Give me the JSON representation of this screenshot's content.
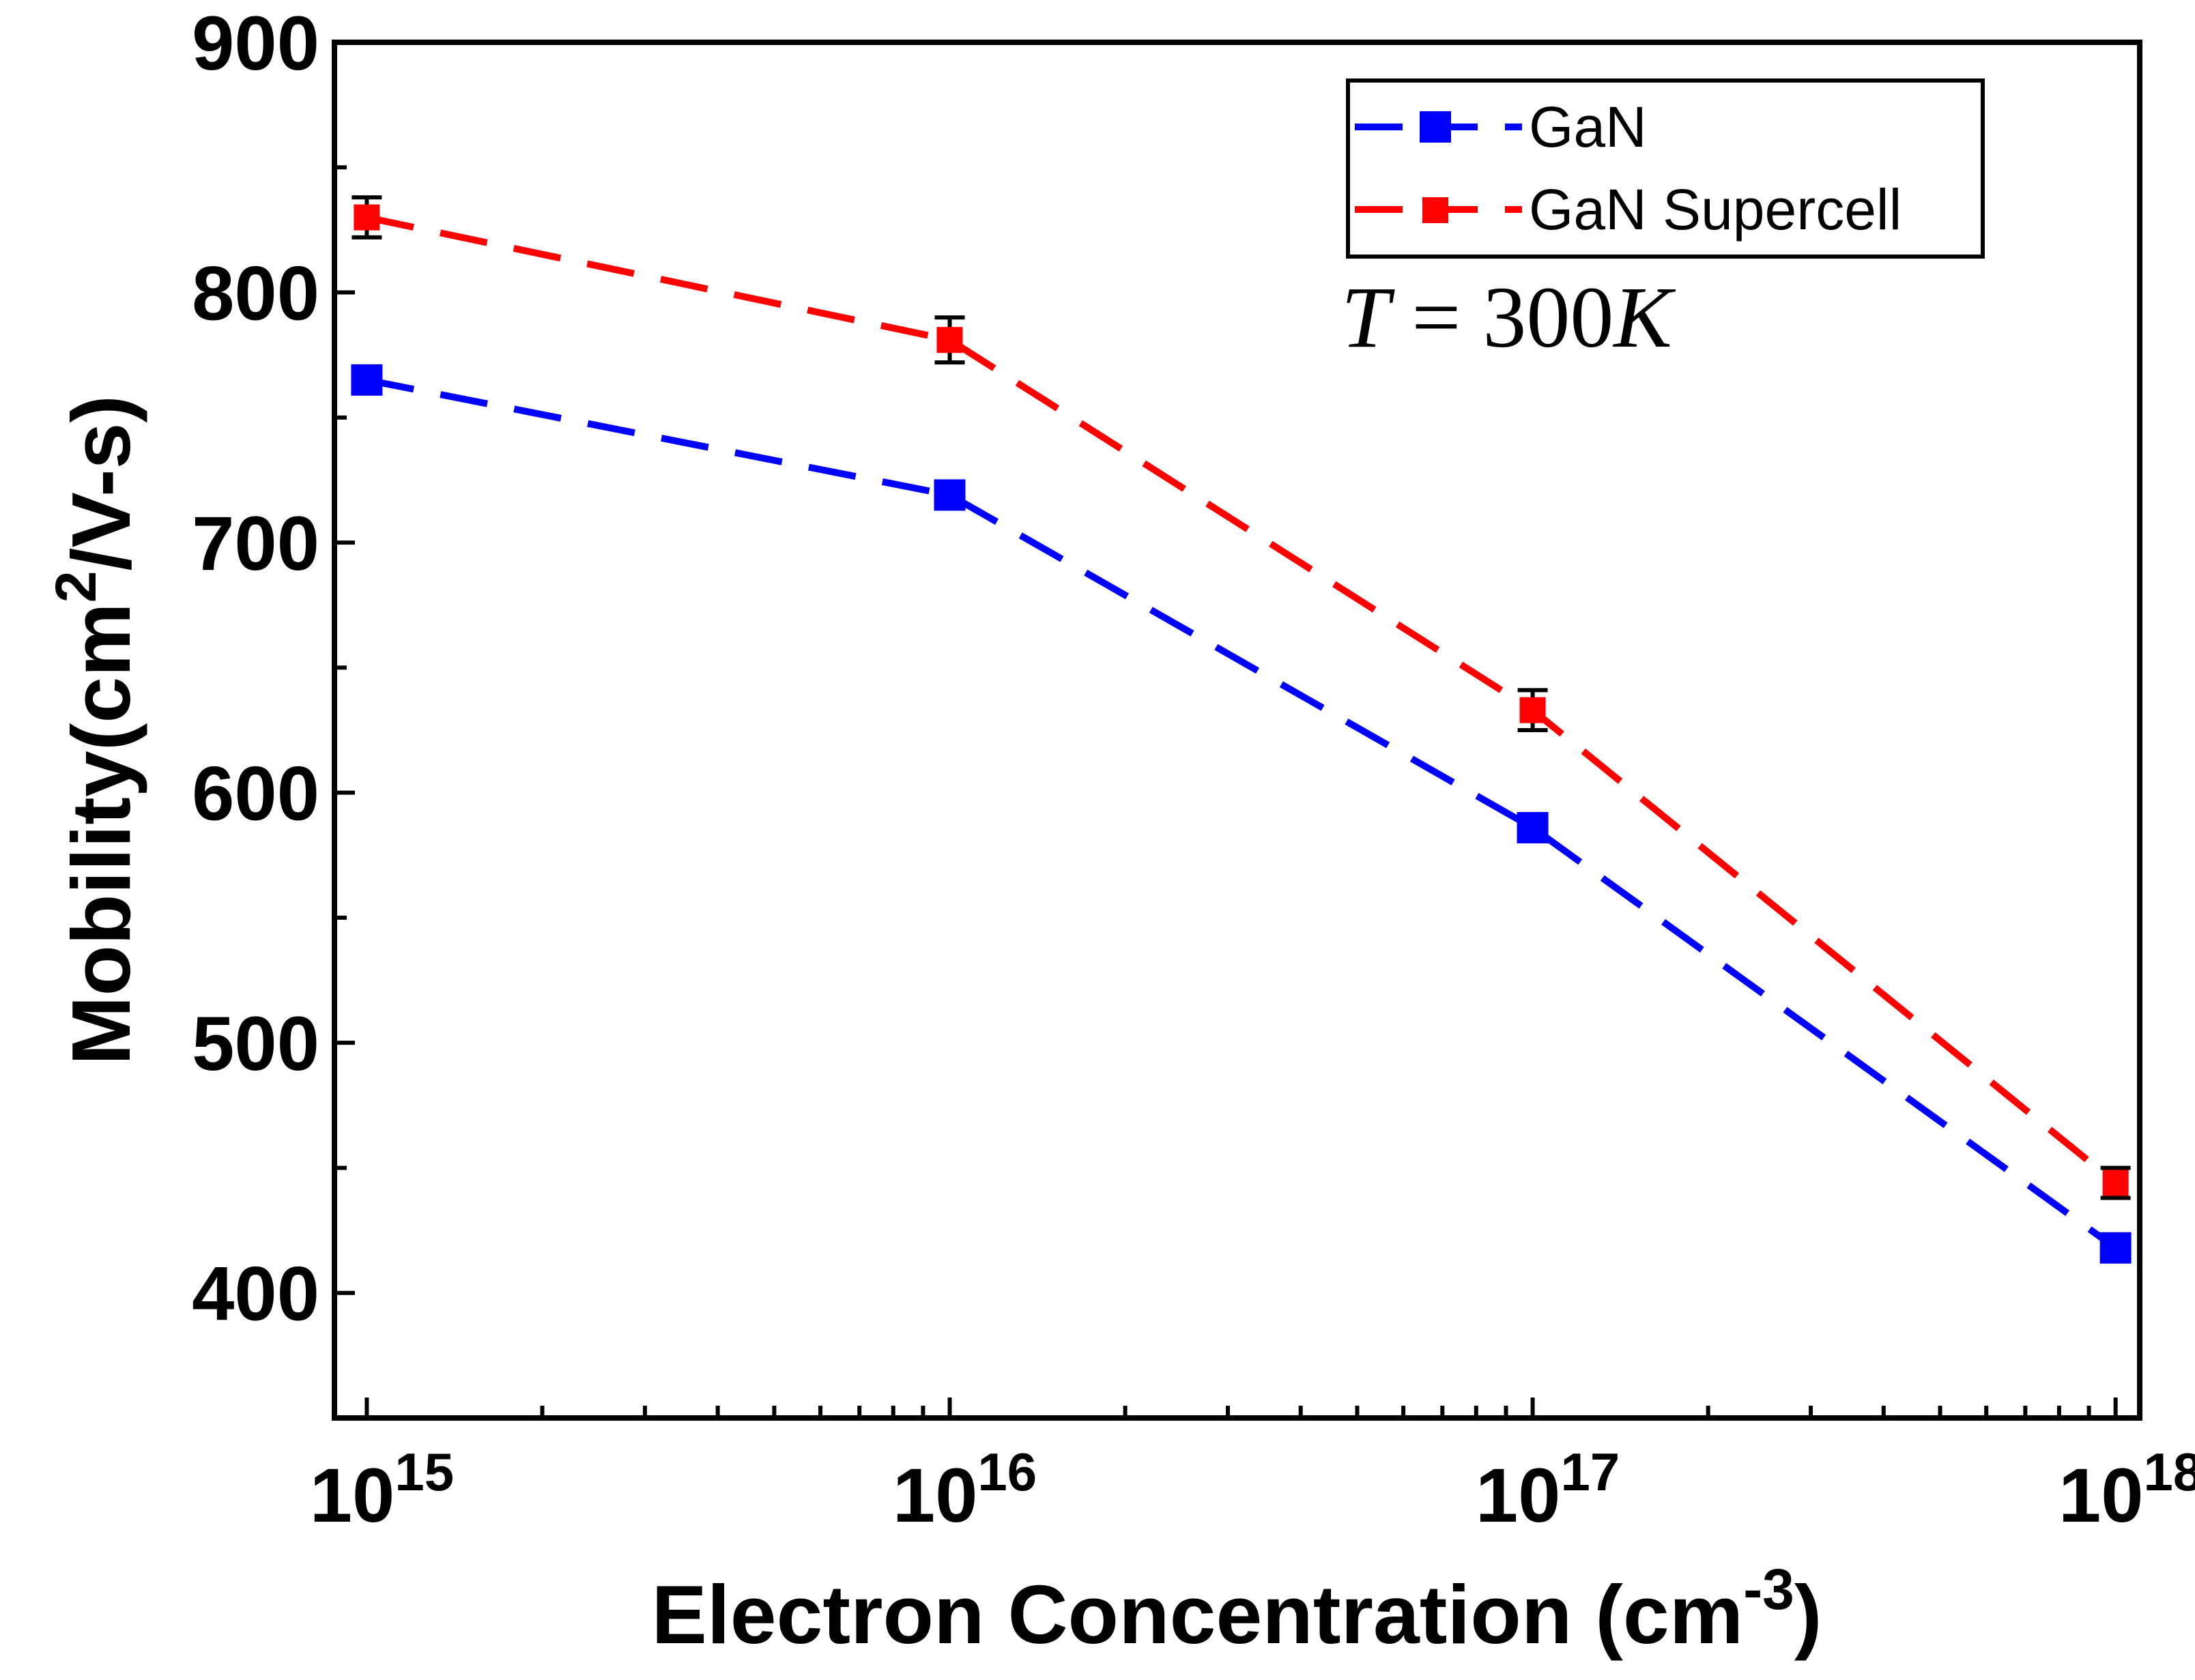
{
  "chart_data": {
    "type": "line",
    "x_scale": "log",
    "x": [
      1000000000000000.0,
      1e+16,
      1e+17,
      1e+18
    ],
    "x_tick_labels": [
      {
        "base": "10",
        "exp": "15"
      },
      {
        "base": "10",
        "exp": "16"
      },
      {
        "base": "10",
        "exp": "17"
      },
      {
        "base": "10",
        "exp": "18"
      }
    ],
    "xlim": [
      880000000000000.0,
      1.1e+18
    ],
    "ylim": [
      350,
      900
    ],
    "y_ticks": [
      400,
      500,
      600,
      700,
      800,
      900
    ],
    "y_tick_labels": [
      "400",
      "500",
      "600",
      "700",
      "800",
      "900"
    ],
    "xlabel": {
      "main": "Electron Concentration (cm",
      "sup": "-3",
      "close": ")"
    },
    "ylabel": {
      "main": "Mobility(cm",
      "sup": "2",
      "rest": "/V-s)"
    },
    "annotation": {
      "T": "T",
      "eq": " = 300",
      "K": "K"
    },
    "legend_position": "top-right",
    "series": [
      {
        "name": "GaN",
        "color": "#0000ff",
        "values": [
          765,
          719,
          586,
          418
        ],
        "errors": null
      },
      {
        "name": "GaN Supercell",
        "color": "#ff0000",
        "values": [
          830,
          781,
          633,
          444
        ],
        "errors": [
          8,
          9,
          8,
          6
        ]
      }
    ]
  }
}
